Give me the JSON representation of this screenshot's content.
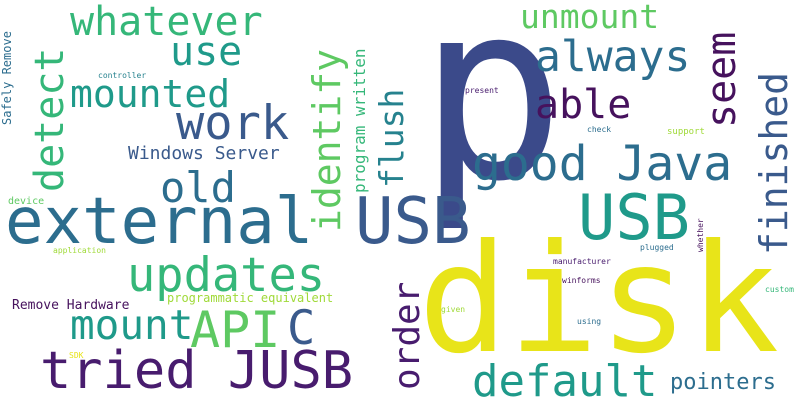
{
  "palette": {
    "indigo": "#3b4a8a",
    "dark_purple": "#46125d",
    "purple": "#481c6e",
    "slate_blue": "#3a5a8c",
    "blue": "#2c6d8e",
    "teal": "#26828e",
    "blue_green": "#1f9a8a",
    "green": "#35b779",
    "light_green": "#5ec962",
    "lime": "#a0da39",
    "yellow": "#e8e419"
  },
  "words": [
    {
      "text": "p",
      "color": "indigo"
    },
    {
      "text": "disk",
      "color": "yellow"
    },
    {
      "text": "external",
      "color": "blue"
    },
    {
      "text": "USB",
      "color": "slate_blue"
    },
    {
      "text": "USB",
      "color": "blue_green"
    },
    {
      "text": "tried JUSB",
      "color": "purple"
    },
    {
      "text": "updates",
      "color": "green"
    },
    {
      "text": "API",
      "color": "light_green"
    },
    {
      "text": "good Java",
      "color": "blue"
    },
    {
      "text": "default",
      "color": "blue_green"
    },
    {
      "text": "work",
      "color": "slate_blue"
    },
    {
      "text": "mount",
      "color": "blue_green"
    },
    {
      "text": "C",
      "color": "slate_blue"
    },
    {
      "text": "old",
      "color": "blue"
    },
    {
      "text": "always",
      "color": "blue"
    },
    {
      "text": "whatever",
      "color": "green"
    },
    {
      "text": "mounted",
      "color": "blue_green"
    },
    {
      "text": "use",
      "color": "blue_green"
    },
    {
      "text": "able",
      "color": "dark_purple"
    },
    {
      "text": "unmount",
      "color": "light_green"
    },
    {
      "text": "detect",
      "color": "green"
    },
    {
      "text": "identify",
      "color": "light_green"
    },
    {
      "text": "seem",
      "color": "dark_purple"
    },
    {
      "text": "finished",
      "color": "slate_blue"
    },
    {
      "text": "order",
      "color": "purple"
    },
    {
      "text": "flush",
      "color": "teal"
    },
    {
      "text": "pointers",
      "color": "blue"
    },
    {
      "text": "program written",
      "color": "green"
    },
    {
      "text": "Windows Server",
      "color": "slate_blue"
    },
    {
      "text": "Remove Hardware",
      "color": "dark_purple"
    },
    {
      "text": "programmatic equivalent",
      "color": "lime"
    },
    {
      "text": "Safely Remove",
      "color": "blue"
    },
    {
      "text": "controller",
      "color": "teal"
    },
    {
      "text": "device",
      "color": "light_green"
    },
    {
      "text": "application",
      "color": "lime"
    },
    {
      "text": "present",
      "color": "purple"
    },
    {
      "text": "check",
      "color": "blue"
    },
    {
      "text": "support",
      "color": "lime"
    },
    {
      "text": "manufacturer",
      "color": "purple"
    },
    {
      "text": "plugged",
      "color": "blue"
    },
    {
      "text": "whether",
      "color": "dark_purple"
    },
    {
      "text": "winforms",
      "color": "dark_purple"
    },
    {
      "text": "given",
      "color": "lime"
    },
    {
      "text": "using",
      "color": "blue"
    },
    {
      "text": "custom",
      "color": "green"
    },
    {
      "text": "SDK",
      "color": "yellow"
    }
  ]
}
